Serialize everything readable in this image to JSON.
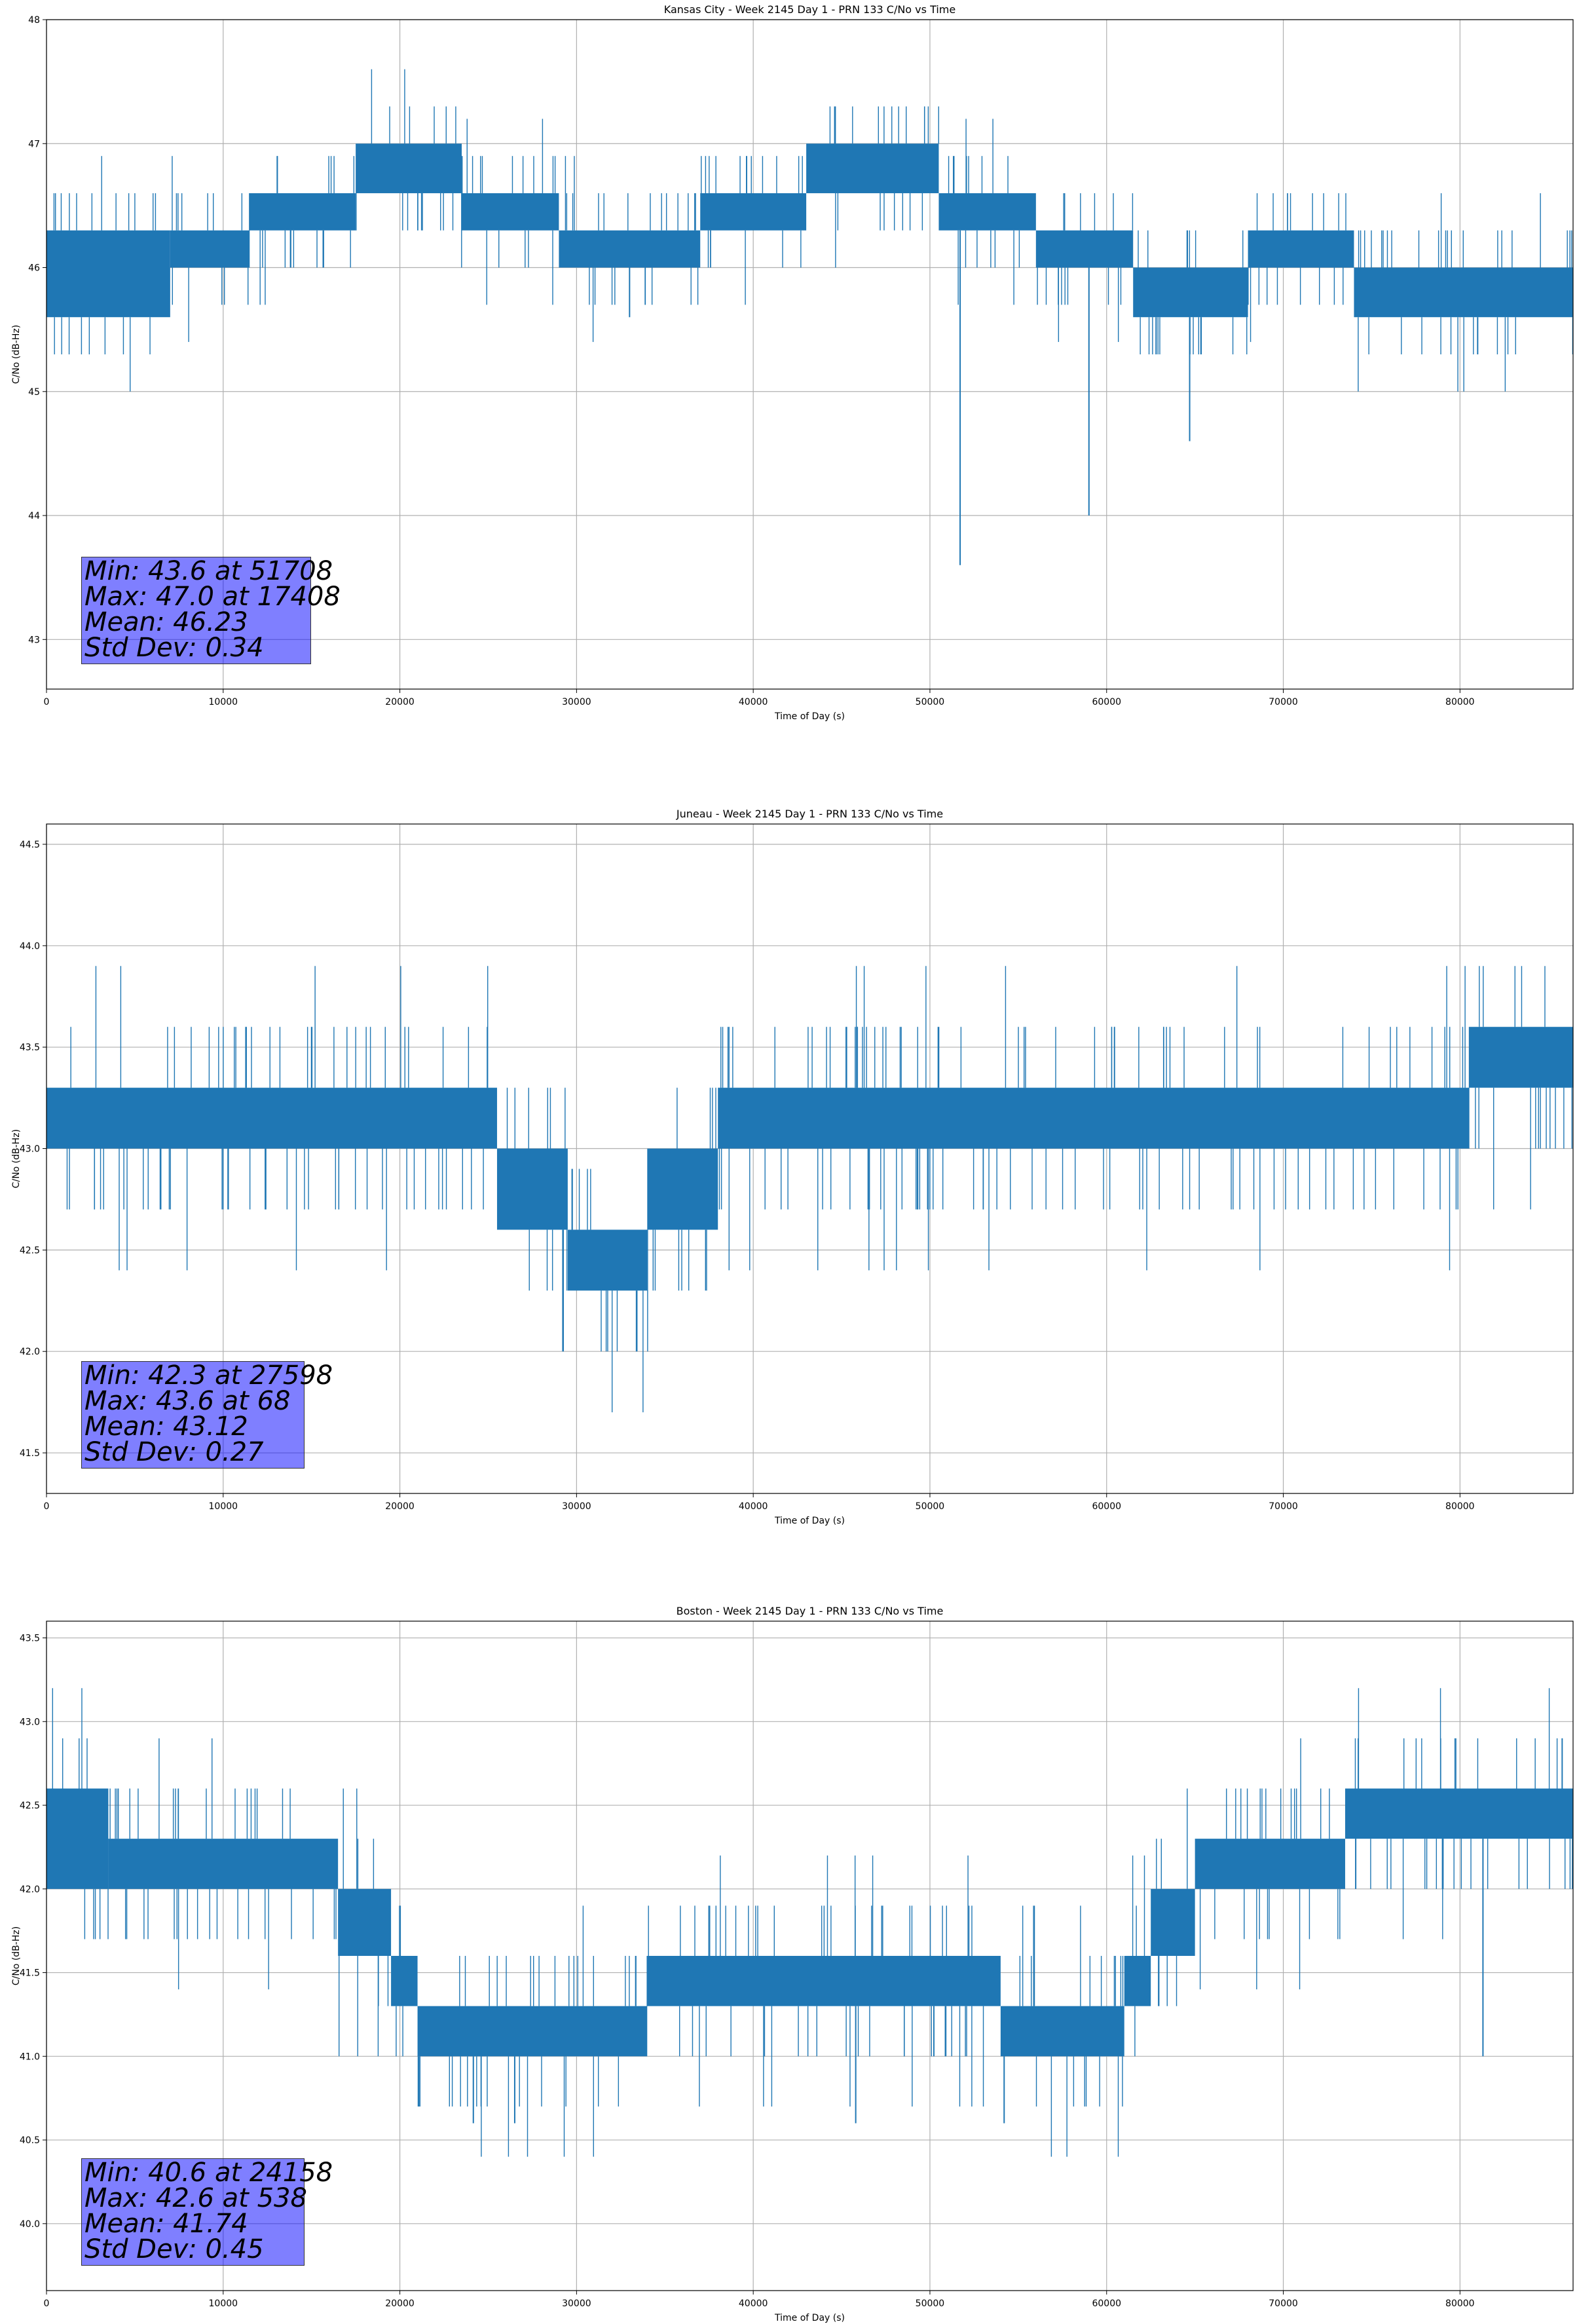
{
  "colors": {
    "series": "#1f77b4",
    "grid": "#b0b0b0",
    "stats_box": "rgba(0,0,255,0.5)"
  },
  "chart_data": [
    {
      "type": "line",
      "title": "Kansas City - Week 2145 Day 1 - PRN 133 C/No vs Time",
      "xlabel": "Time of Day (s)",
      "ylabel": "C/No (dB-Hz)",
      "xlim": [
        0,
        86400
      ],
      "ylim": [
        42.6,
        48.0
      ],
      "xticks": [
        "0",
        "10000",
        "20000",
        "30000",
        "40000",
        "50000",
        "60000",
        "70000",
        "80000"
      ],
      "yticks": [
        "43",
        "44",
        "45",
        "46",
        "47",
        "48"
      ],
      "grid": true,
      "stats": [
        "Min: 43.6 at 51708",
        "Max: 47.0 at 17408",
        "Mean: 46.23",
        "Std Dev: 0.34"
      ],
      "segments": [
        {
          "x0": 0,
          "x1": 7000,
          "lo": 45.6,
          "hi": 46.3
        },
        {
          "x0": 7000,
          "x1": 11500,
          "lo": 46.0,
          "hi": 46.3
        },
        {
          "x0": 11500,
          "x1": 17500,
          "lo": 46.3,
          "hi": 46.6
        },
        {
          "x0": 17500,
          "x1": 23500,
          "lo": 46.6,
          "hi": 47.0
        },
        {
          "x0": 23500,
          "x1": 29000,
          "lo": 46.3,
          "hi": 46.6
        },
        {
          "x0": 29000,
          "x1": 37000,
          "lo": 46.0,
          "hi": 46.3
        },
        {
          "x0": 37000,
          "x1": 43000,
          "lo": 46.3,
          "hi": 46.6
        },
        {
          "x0": 43000,
          "x1": 50500,
          "lo": 46.6,
          "hi": 47.0
        },
        {
          "x0": 50500,
          "x1": 56000,
          "lo": 46.3,
          "hi": 46.6
        },
        {
          "x0": 56000,
          "x1": 61500,
          "lo": 46.0,
          "hi": 46.3
        },
        {
          "x0": 61500,
          "x1": 68000,
          "lo": 45.6,
          "hi": 46.0
        },
        {
          "x0": 68000,
          "x1": 74000,
          "lo": 46.0,
          "hi": 46.3
        },
        {
          "x0": 74000,
          "x1": 86400,
          "lo": 45.6,
          "hi": 46.0
        }
      ],
      "outliers": [
        [
          51708,
          43.6
        ],
        [
          59000,
          44.0
        ],
        [
          64700,
          44.6
        ],
        [
          81000,
          45.3
        ],
        [
          33000,
          45.6
        ],
        [
          62800,
          45.3
        ]
      ]
    },
    {
      "type": "line",
      "title": "Juneau - Week 2145 Day 1 - PRN 133 C/No vs Time",
      "xlabel": "Time of Day (s)",
      "ylabel": "C/No (dB-Hz)",
      "xlim": [
        0,
        86400
      ],
      "ylim": [
        41.3,
        44.6
      ],
      "xticks": [
        "0",
        "10000",
        "20000",
        "30000",
        "40000",
        "50000",
        "60000",
        "70000",
        "80000"
      ],
      "yticks": [
        "41.5",
        "42.0",
        "42.5",
        "43.0",
        "43.5",
        "44.0",
        "44.5"
      ],
      "grid": true,
      "stats": [
        "Min: 42.3 at 27598",
        "Max: 43.6 at 68",
        "Mean: 43.12",
        "Std Dev: 0.27"
      ],
      "segments": [
        {
          "x0": 0,
          "x1": 25500,
          "lo": 43.0,
          "hi": 43.3
        },
        {
          "x0": 25500,
          "x1": 29500,
          "lo": 42.6,
          "hi": 43.0
        },
        {
          "x0": 29500,
          "x1": 34000,
          "lo": 42.3,
          "hi": 42.6
        },
        {
          "x0": 34000,
          "x1": 38000,
          "lo": 42.6,
          "hi": 43.0
        },
        {
          "x0": 38000,
          "x1": 80500,
          "lo": 43.0,
          "hi": 43.3
        },
        {
          "x0": 80500,
          "x1": 86400,
          "lo": 43.3,
          "hi": 43.6
        }
      ],
      "outliers": []
    },
    {
      "type": "line",
      "title": "Boston - Week 2145 Day 1 - PRN 133 C/No vs Time",
      "xlabel": "Time of Day (s)",
      "ylabel": "C/No (dB-Hz)",
      "xlim": [
        0,
        86400
      ],
      "ylim": [
        39.6,
        43.6
      ],
      "xticks": [
        "0",
        "10000",
        "20000",
        "30000",
        "40000",
        "50000",
        "60000",
        "70000",
        "80000"
      ],
      "yticks": [
        "40.0",
        "40.5",
        "41.0",
        "41.5",
        "42.0",
        "42.5",
        "43.0",
        "43.5"
      ],
      "grid": true,
      "stats": [
        "Min: 40.6 at 24158",
        "Max: 42.6 at 538",
        "Mean: 41.74",
        "Std Dev: 0.45"
      ],
      "segments": [
        {
          "x0": 0,
          "x1": 3500,
          "lo": 42.0,
          "hi": 42.6
        },
        {
          "x0": 3500,
          "x1": 16500,
          "lo": 42.0,
          "hi": 42.3
        },
        {
          "x0": 16500,
          "x1": 19500,
          "lo": 41.6,
          "hi": 42.0
        },
        {
          "x0": 19500,
          "x1": 21000,
          "lo": 41.3,
          "hi": 41.6
        },
        {
          "x0": 21000,
          "x1": 34000,
          "lo": 41.0,
          "hi": 41.3
        },
        {
          "x0": 34000,
          "x1": 54000,
          "lo": 41.3,
          "hi": 41.6
        },
        {
          "x0": 54000,
          "x1": 61000,
          "lo": 41.0,
          "hi": 41.3
        },
        {
          "x0": 61000,
          "x1": 62500,
          "lo": 41.3,
          "hi": 41.6
        },
        {
          "x0": 62500,
          "x1": 65000,
          "lo": 41.6,
          "hi": 42.0
        },
        {
          "x0": 65000,
          "x1": 73500,
          "lo": 42.0,
          "hi": 42.3
        },
        {
          "x0": 73500,
          "x1": 86400,
          "lo": 42.3,
          "hi": 42.6
        }
      ],
      "outliers": [
        [
          24158,
          40.6
        ],
        [
          26500,
          40.6
        ],
        [
          45800,
          40.6
        ],
        [
          54200,
          40.6
        ],
        [
          81300,
          41.0
        ]
      ]
    }
  ]
}
